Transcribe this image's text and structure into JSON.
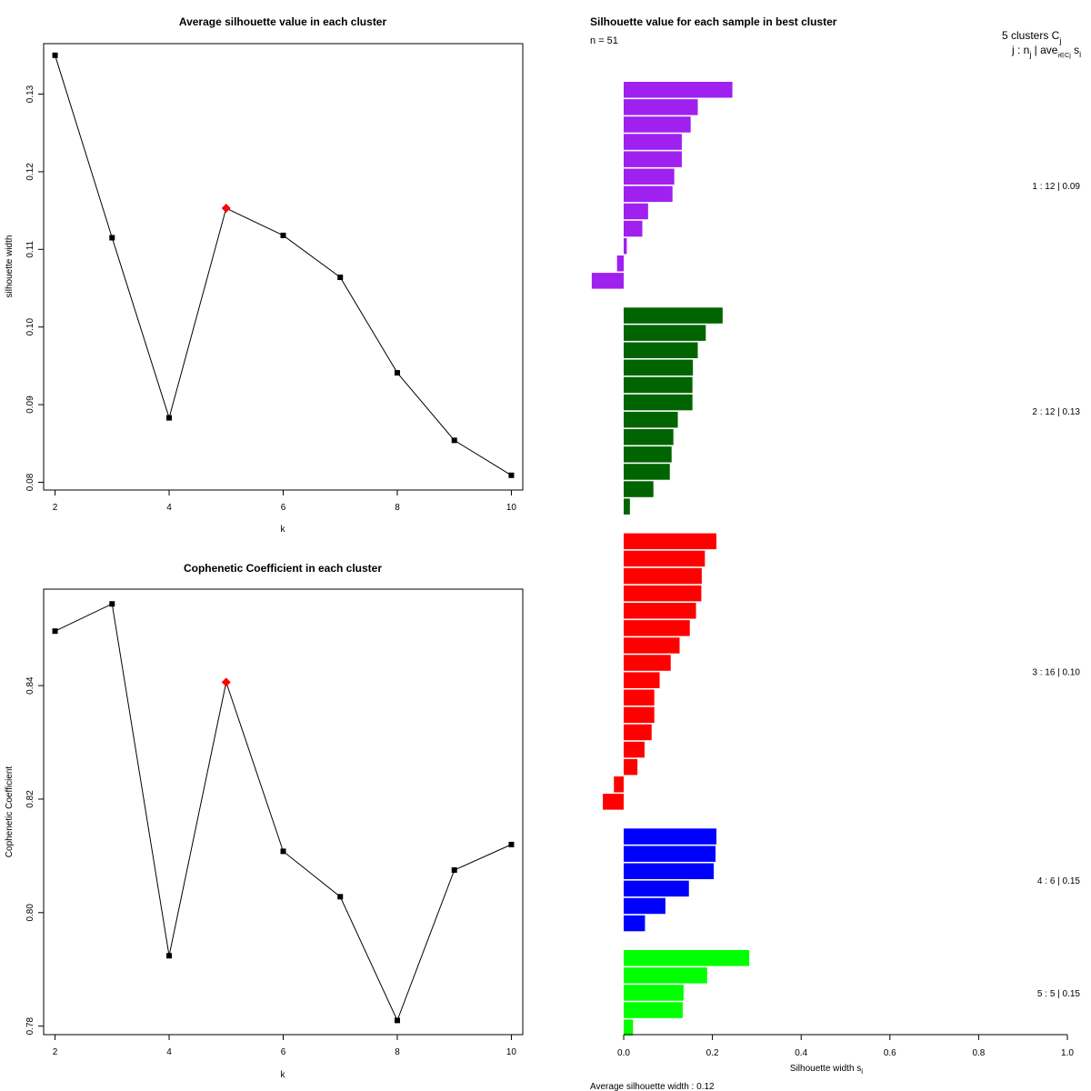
{
  "chart_data": [
    {
      "type": "line",
      "title": "Average silhouette value in each cluster",
      "xlabel": "k",
      "ylabel": "silhouette width",
      "xlim": [
        1.8,
        10.2
      ],
      "ylim": [
        0.079,
        0.1365
      ],
      "x_ticks": [
        "2",
        "4",
        "6",
        "8",
        "10"
      ],
      "y_ticks": [
        "0.08",
        "0.09",
        "0.10",
        "0.11",
        "0.12",
        "0.13"
      ],
      "x": [
        2,
        3,
        4,
        5,
        6,
        7,
        8,
        9,
        10
      ],
      "y": [
        0.135,
        0.1115,
        0.0883,
        0.1153,
        0.1118,
        0.1064,
        0.0941,
        0.0854,
        0.0809
      ],
      "highlight_index": 3,
      "marker_color": "#000000",
      "highlight_color": "#ff0000"
    },
    {
      "type": "line",
      "title": "Cophenetic Coefficient in each cluster",
      "xlabel": "k",
      "ylabel": "Cophenetic Coefficient",
      "xlim": [
        1.8,
        10.2
      ],
      "ylim": [
        0.7785,
        0.857
      ],
      "x_ticks": [
        "2",
        "4",
        "6",
        "8",
        "10"
      ],
      "y_ticks": [
        "0.78",
        "0.80",
        "0.82",
        "0.84"
      ],
      "x": [
        2,
        3,
        4,
        5,
        6,
        7,
        8,
        9,
        10
      ],
      "y": [
        0.8496,
        0.8544,
        0.7924,
        0.8406,
        0.8108,
        0.8028,
        0.781,
        0.8075,
        0.812
      ],
      "highlight_index": 3,
      "marker_color": "#000000",
      "highlight_color": "#ff0000"
    },
    {
      "type": "bar",
      "orientation": "horizontal",
      "title": "Silhouette value for each sample in best cluster",
      "n_label": "n = 51",
      "legend_line1": "5  clusters  C",
      "legend_sub1": "j",
      "legend_line2": "j :  n",
      "legend_sub2": "j",
      "legend_line2b": " | ave",
      "legend_sub3": "i∈Cj",
      "legend_line2c": " s",
      "legend_sub4": "i",
      "xlabel": "Silhouette width s",
      "xlabel_sub": "i",
      "xlim": [
        0,
        1
      ],
      "x_ticks": [
        "0.0",
        "0.2",
        "0.4",
        "0.6",
        "0.8",
        "1.0"
      ],
      "footer": "Average silhouette width :  0.12",
      "clusters": [
        {
          "label": "1 :   12  |  0.09",
          "color": "#a020f0",
          "values": [
            0.245,
            0.167,
            0.151,
            0.131,
            0.131,
            0.114,
            0.11,
            0.055,
            0.042,
            0.007,
            -0.015,
            -0.072
          ]
        },
        {
          "label": "2 :   12  |  0.13",
          "color": "#006400",
          "values": [
            0.223,
            0.185,
            0.167,
            0.156,
            0.155,
            0.155,
            0.122,
            0.112,
            0.108,
            0.104,
            0.067,
            0.014
          ]
        },
        {
          "label": "3 :   16  |  0.10",
          "color": "#ff0000",
          "values": [
            0.209,
            0.183,
            0.176,
            0.175,
            0.163,
            0.149,
            0.126,
            0.106,
            0.081,
            0.069,
            0.069,
            0.063,
            0.047,
            0.031,
            -0.022,
            -0.047
          ]
        },
        {
          "label": "4 :   6   |  0.15",
          "color": "#0000ff",
          "values": [
            0.209,
            0.207,
            0.203,
            0.147,
            0.094,
            0.048
          ]
        },
        {
          "label": "5 :   5   |  0.15",
          "color": "#00ff00",
          "values": [
            0.283,
            0.188,
            0.135,
            0.133,
            0.021
          ]
        }
      ]
    }
  ]
}
